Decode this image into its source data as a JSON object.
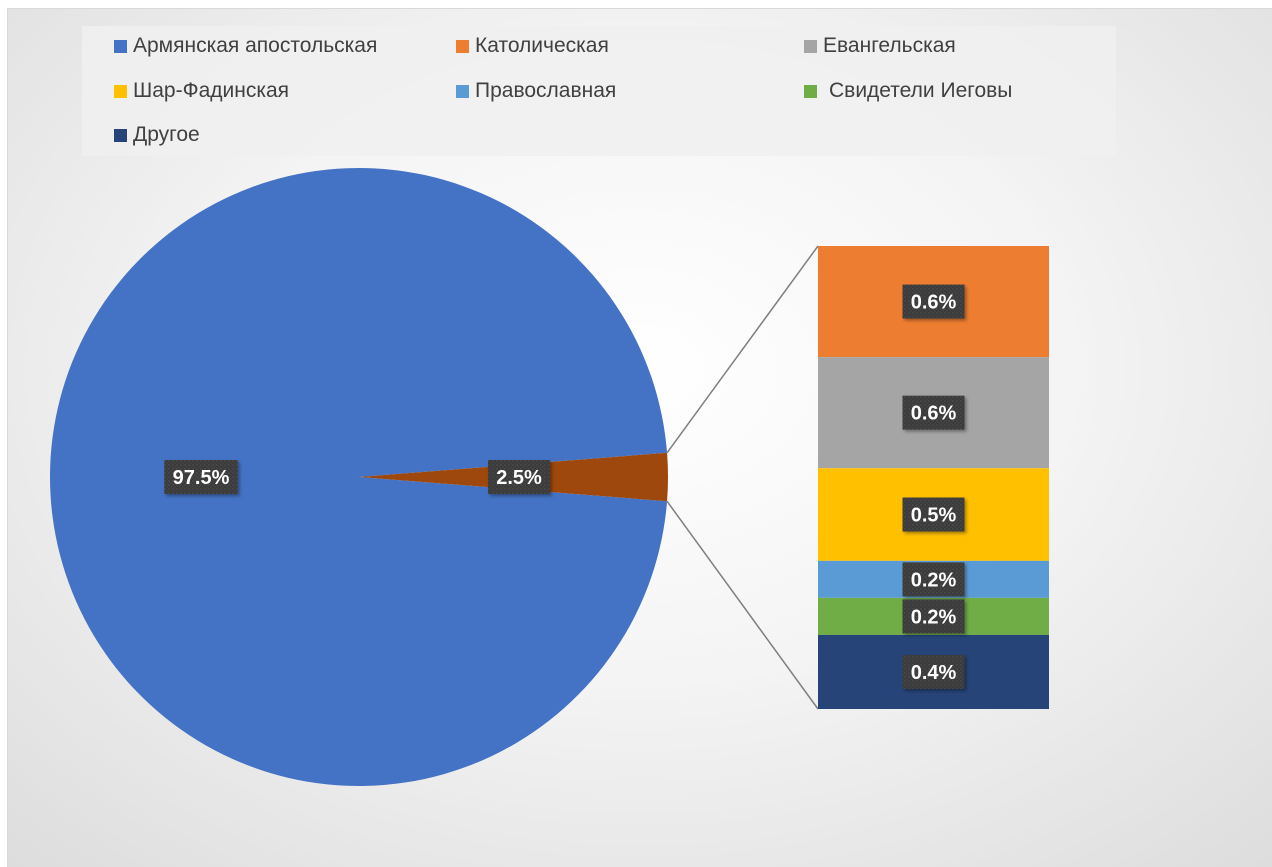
{
  "chart_data": {
    "type": "pie",
    "subtype": "bar-of-pie",
    "title": "",
    "legend_position": "top",
    "series": [
      {
        "name": "Армянская апостольская",
        "value": 97.5,
        "color": "#4472C4"
      },
      {
        "name": "Католическая",
        "value": 0.6,
        "color": "#ED7D31"
      },
      {
        "name": "Евангельская",
        "value": 0.6,
        "color": "#A5A5A5"
      },
      {
        "name": "Шар-Фадинская",
        "value": 0.5,
        "color": "#FFC000"
      },
      {
        "name": "Православная",
        "value": 0.2,
        "color": "#5B9BD5"
      },
      {
        "name": "Свидетели Иеговы",
        "value": 0.2,
        "color": "#70AD47"
      },
      {
        "name": "Другое",
        "value": 0.4,
        "color": "#264478"
      }
    ],
    "pie_slices": [
      {
        "label": "97.5%",
        "value": 97.5,
        "color": "#4472C4"
      },
      {
        "label": "2.5%",
        "value": 2.5,
        "color": "#9E480E"
      }
    ],
    "bar_segments": [
      {
        "label": "0.6%",
        "value": 0.6,
        "color": "#ED7D31"
      },
      {
        "label": "0.6%",
        "value": 0.6,
        "color": "#A5A5A5"
      },
      {
        "label": "0.5%",
        "value": 0.5,
        "color": "#FFC000"
      },
      {
        "label": "0.2%",
        "value": 0.2,
        "color": "#5B9BD5"
      },
      {
        "label": "0.2%",
        "value": 0.2,
        "color": "#70AD47"
      },
      {
        "label": "0.4%",
        "value": 0.4,
        "color": "#264478"
      }
    ]
  }
}
